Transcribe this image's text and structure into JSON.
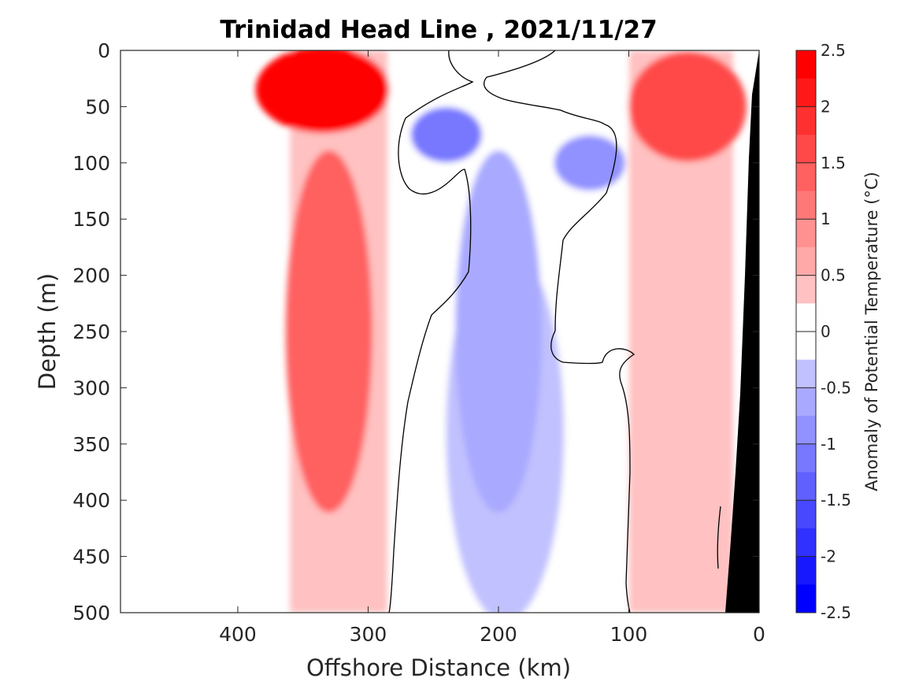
{
  "chart_data": {
    "type": "heatmap",
    "title": "Trinidad Head Line , 2021/11/27",
    "xlabel": "Offshore Distance (km)",
    "ylabel": "Depth (m)",
    "xlim": [
      490,
      0
    ],
    "ylim": [
      0,
      500
    ],
    "x_ticks": [
      "400",
      "300",
      "200",
      "100",
      "0"
    ],
    "x_tick_values": [
      400,
      300,
      200,
      100,
      0
    ],
    "y_ticks": [
      "0",
      "50",
      "100",
      "150",
      "200",
      "250",
      "300",
      "350",
      "400",
      "450",
      "500"
    ],
    "y_tick_values": [
      0,
      50,
      100,
      150,
      200,
      250,
      300,
      350,
      400,
      450,
      500
    ],
    "grid": false,
    "x_axis_reversed": true,
    "y_axis_reversed": true,
    "data_extent_km": [
      360,
      20
    ],
    "colorbar": {
      "label": "Anomaly of Potential Temperature (°C)",
      "min": -2.5,
      "max": 2.5,
      "step": 0.25,
      "tick_labels": [
        "2.5",
        "2",
        "1.5",
        "1",
        "0.5",
        "0",
        "-0.5",
        "-1",
        "-1.5",
        "-2",
        "-2.5"
      ],
      "tick_values": [
        2.5,
        2,
        1.5,
        1,
        0.5,
        0,
        -0.5,
        -1,
        -1.5,
        -2,
        -2.5
      ]
    },
    "features": [
      {
        "name": "warm core",
        "distance_km": 335,
        "depth_m": 35,
        "anomaly": 2.5
      },
      {
        "name": "warm column",
        "distance_km": 330,
        "depth_m": 250,
        "anomaly": 1.25
      },
      {
        "name": "nearshore warm layer",
        "distance_km": 55,
        "depth_m": 50,
        "anomaly": 1.5
      },
      {
        "name": "cold core",
        "distance_km": 240,
        "depth_m": 75,
        "anomaly": -1.0
      },
      {
        "name": "cold patch",
        "distance_km": 130,
        "depth_m": 100,
        "anomaly": -0.75
      },
      {
        "name": "cold tongue",
        "distance_km": 200,
        "depth_m": 250,
        "anomaly": -0.5
      }
    ],
    "colors": {
      "warm_max": "#ff0000",
      "neutral": "#ffffff",
      "cold_min": "#0000ff",
      "zero_contour": "#000000",
      "bathymetry": "#000000"
    }
  }
}
